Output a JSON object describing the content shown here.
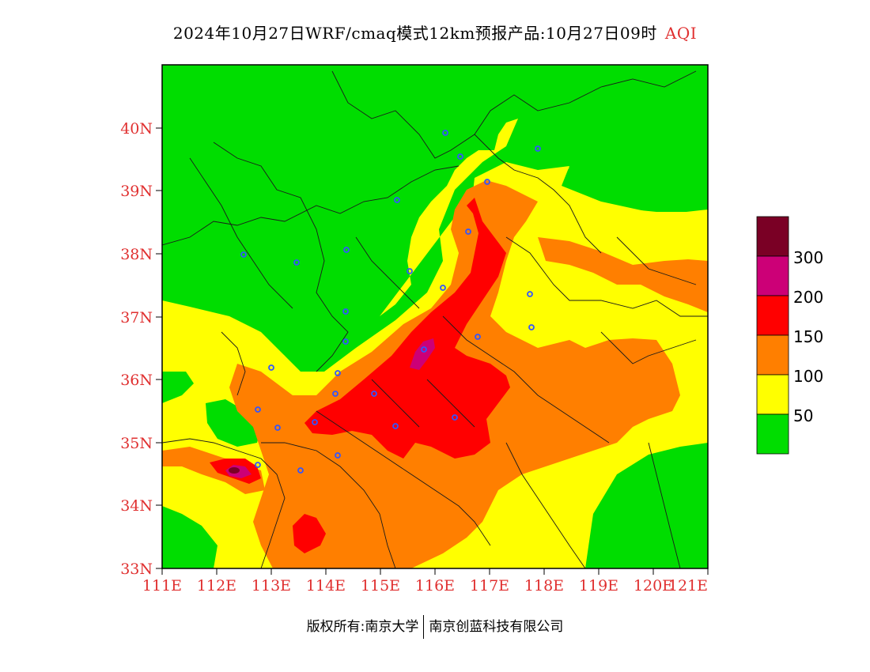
{
  "title": {
    "main": "2024年10月27日WRF/cmaq模式12km预报产品:10月27日09时",
    "variable": "AQI"
  },
  "axes": {
    "x_ticks": [
      "111E",
      "112E",
      "113E",
      "114E",
      "115E",
      "116E",
      "117E",
      "118E",
      "119E",
      "120E",
      "121E"
    ],
    "y_ticks": [
      "33N",
      "34N",
      "35N",
      "36N",
      "37N",
      "38N",
      "39N",
      "40N"
    ]
  },
  "legend": {
    "labels": [
      "50",
      "100",
      "150",
      "200",
      "300"
    ],
    "colors": [
      "#00dd00",
      "#ffff00",
      "#ff7f00",
      "#ff0000",
      "#cc0077",
      "#7a0025"
    ]
  },
  "colors": {
    "good": "#00dd00",
    "moderate": "#ffff00",
    "unhealthy_sensitive": "#ff7f00",
    "unhealthy": "#ff0000",
    "very_unhealthy": "#cc0077",
    "hazardous": "#7a0025",
    "station_marker": "#3355ff",
    "axis_text": "#e03030"
  },
  "footer": {
    "copyright": "版权所有:南京大学",
    "company": "南京创蓝科技有限公司"
  }
}
